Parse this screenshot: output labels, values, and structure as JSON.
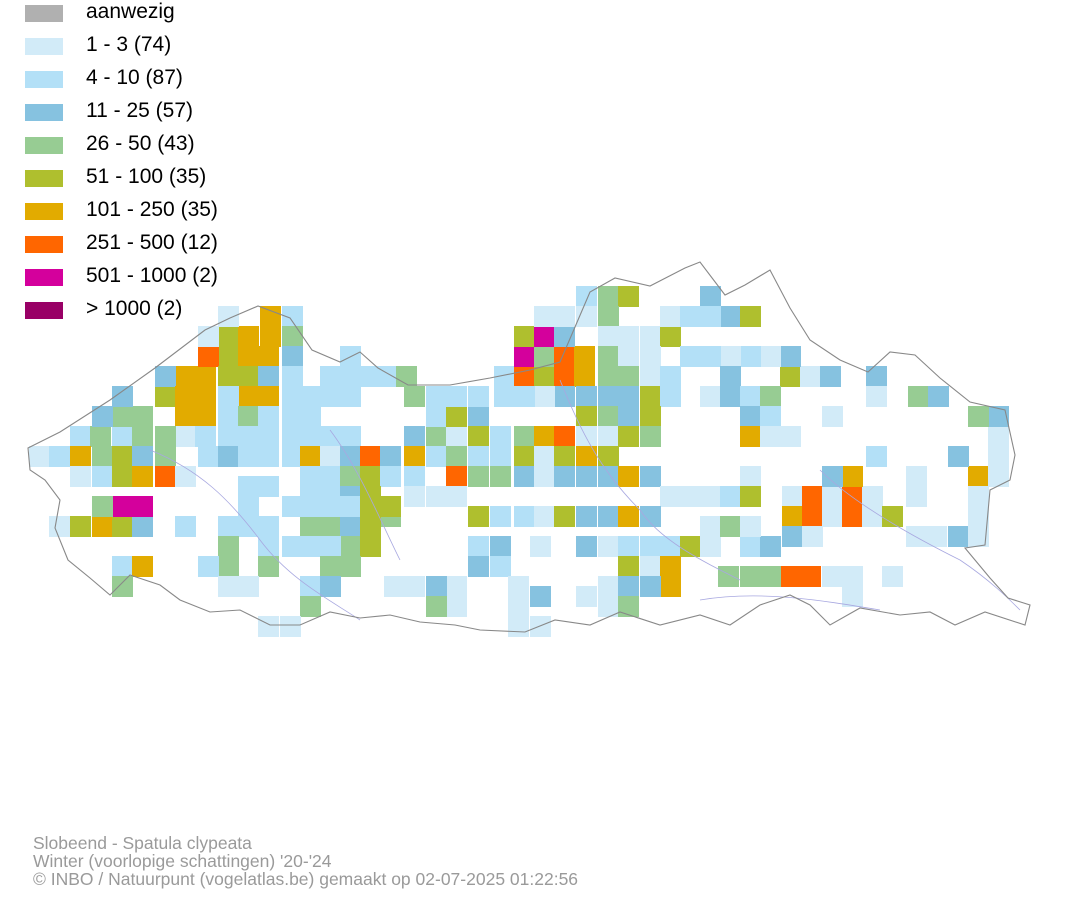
{
  "legend": [
    {
      "label": "aanwezig",
      "color": "#b0b0b0"
    },
    {
      "label": "1 - 3 (74)",
      "color": "#d2ebf8"
    },
    {
      "label": "4 - 10 (87)",
      "color": "#b3e0f7"
    },
    {
      "label": "11 - 25 (57)",
      "color": "#86c2e0"
    },
    {
      "label": "26 - 50 (43)",
      "color": "#97cc93"
    },
    {
      "label": "51 - 100 (35)",
      "color": "#afbf2e"
    },
    {
      "label": "101 - 250 (35)",
      "color": "#e2ab00"
    },
    {
      "label": "251 - 500 (12)",
      "color": "#ff6600"
    },
    {
      "label": "501 - 1000 (2)",
      "color": "#d4009c"
    },
    {
      "label": "> 1000 (2)",
      "color": "#990066"
    }
  ],
  "caption": {
    "line1": "Slobeend - Spatula clypeata",
    "line2": "Winter (voorlopige schattingen) '20-'24",
    "line3": "© INBO / Natuurpunt (vogelatlas.be) gemaakt op 02-07-2025 01:22:56"
  },
  "map": {
    "border_color": "#888888",
    "river_color": "#a8a8e0"
  }
}
